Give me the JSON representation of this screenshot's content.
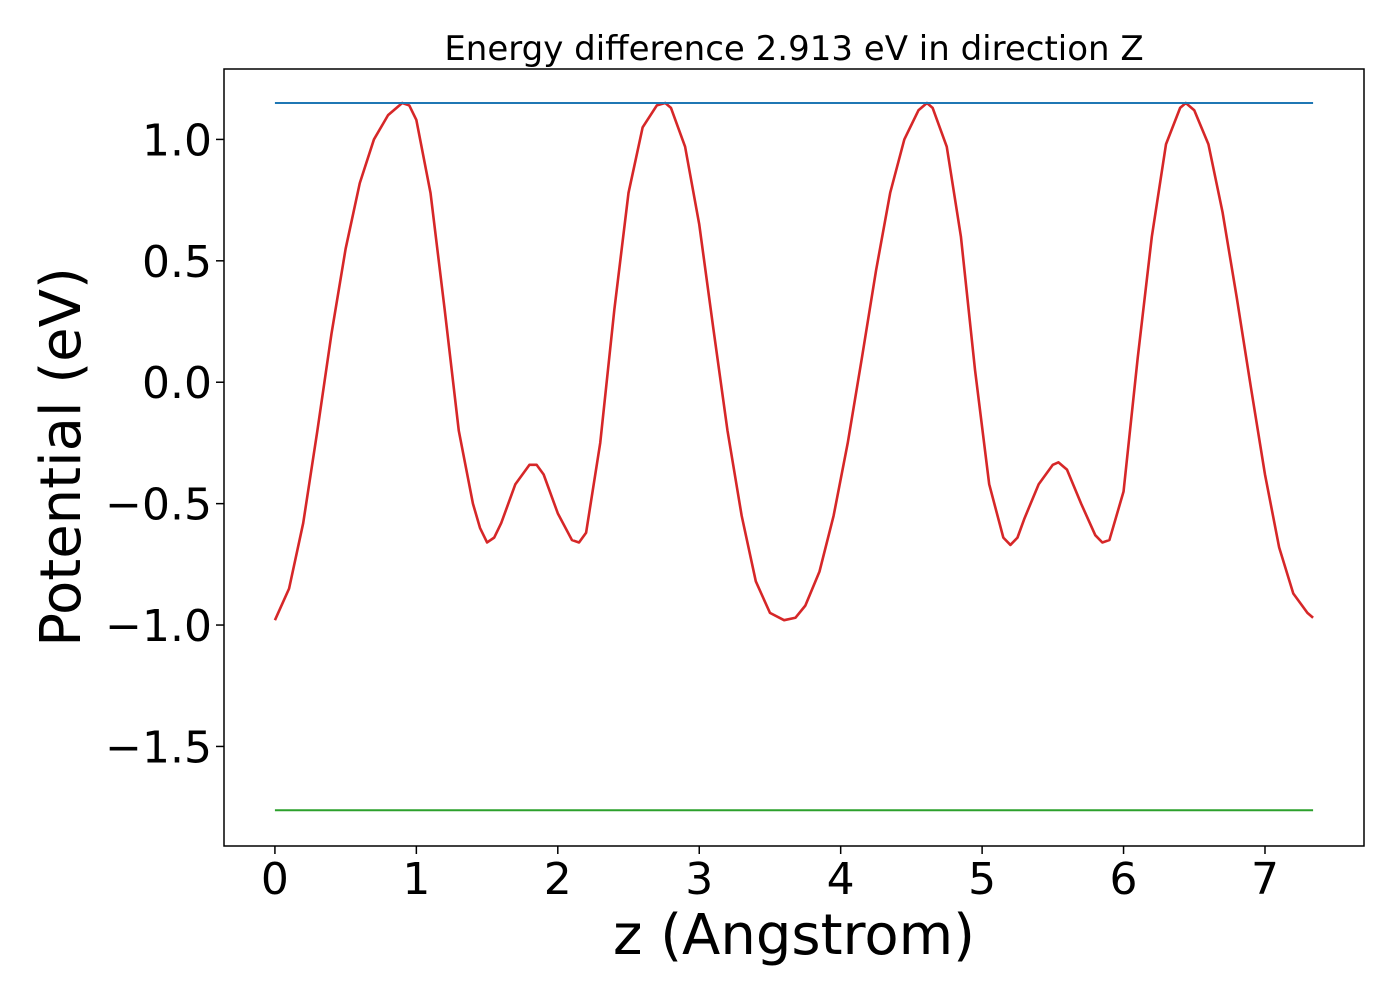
{
  "chart_data": {
    "type": "line",
    "title": "Energy difference 2.913 eV in direction Z",
    "xlabel": "z (Angstrom)",
    "ylabel": "Potential (eV)",
    "xlim": [
      -0.36,
      7.7
    ],
    "ylim": [
      -1.91,
      1.29
    ],
    "x_ticks": [
      0,
      1,
      2,
      3,
      4,
      5,
      6,
      7
    ],
    "x_tick_labels": [
      "0",
      "1",
      "2",
      "3",
      "4",
      "5",
      "6",
      "7"
    ],
    "y_ticks": [
      1.0,
      0.5,
      0.0,
      -0.5,
      -1.0,
      -1.5
    ],
    "y_tick_labels": [
      "1.0",
      "0.5",
      "0.0",
      "−0.5",
      "−1.0",
      "−1.5"
    ],
    "grid": false,
    "series": [
      {
        "color": "#d62728",
        "x": [
          0.0,
          0.1,
          0.2,
          0.3,
          0.4,
          0.5,
          0.6,
          0.7,
          0.8,
          0.9,
          0.95,
          1.0,
          1.1,
          1.2,
          1.3,
          1.4,
          1.45,
          1.5,
          1.55,
          1.6,
          1.7,
          1.8,
          1.85,
          1.9,
          2.0,
          2.1,
          2.15,
          2.2,
          2.3,
          2.4,
          2.5,
          2.6,
          2.7,
          2.76,
          2.8,
          2.9,
          3.0,
          3.1,
          3.2,
          3.3,
          3.4,
          3.5,
          3.6,
          3.68,
          3.75,
          3.85,
          3.95,
          4.05,
          4.15,
          4.25,
          4.35,
          4.45,
          4.55,
          4.61,
          4.65,
          4.75,
          4.85,
          4.95,
          5.05,
          5.15,
          5.2,
          5.25,
          5.3,
          5.4,
          5.5,
          5.54,
          5.6,
          5.7,
          5.8,
          5.85,
          5.9,
          6.0,
          6.1,
          6.2,
          6.3,
          6.4,
          6.44,
          6.5,
          6.6,
          6.7,
          6.8,
          6.9,
          7.0,
          7.1,
          7.2,
          7.3,
          7.34
        ],
        "y": [
          -0.98,
          -0.85,
          -0.58,
          -0.2,
          0.2,
          0.55,
          0.82,
          1.0,
          1.1,
          1.15,
          1.14,
          1.08,
          0.78,
          0.3,
          -0.2,
          -0.5,
          -0.6,
          -0.66,
          -0.64,
          -0.58,
          -0.42,
          -0.34,
          -0.34,
          -0.38,
          -0.54,
          -0.65,
          -0.66,
          -0.62,
          -0.25,
          0.3,
          0.78,
          1.05,
          1.14,
          1.15,
          1.13,
          0.97,
          0.65,
          0.22,
          -0.2,
          -0.55,
          -0.82,
          -0.95,
          -0.98,
          -0.97,
          -0.92,
          -0.78,
          -0.55,
          -0.25,
          0.1,
          0.46,
          0.78,
          1.0,
          1.12,
          1.15,
          1.13,
          0.97,
          0.6,
          0.05,
          -0.42,
          -0.64,
          -0.67,
          -0.64,
          -0.56,
          -0.42,
          -0.34,
          -0.33,
          -0.36,
          -0.5,
          -0.63,
          -0.66,
          -0.65,
          -0.45,
          0.1,
          0.6,
          0.98,
          1.13,
          1.15,
          1.12,
          0.98,
          0.7,
          0.35,
          -0.02,
          -0.38,
          -0.68,
          -0.87,
          -0.95,
          -0.97
        ]
      },
      {
        "color": "#1f77b4",
        "x": [
          0.0,
          7.34
        ],
        "y": [
          1.15,
          1.15
        ]
      },
      {
        "color": "#2ca02c",
        "x": [
          0.0,
          7.34
        ],
        "y": [
          -1.763,
          -1.763
        ]
      }
    ]
  }
}
